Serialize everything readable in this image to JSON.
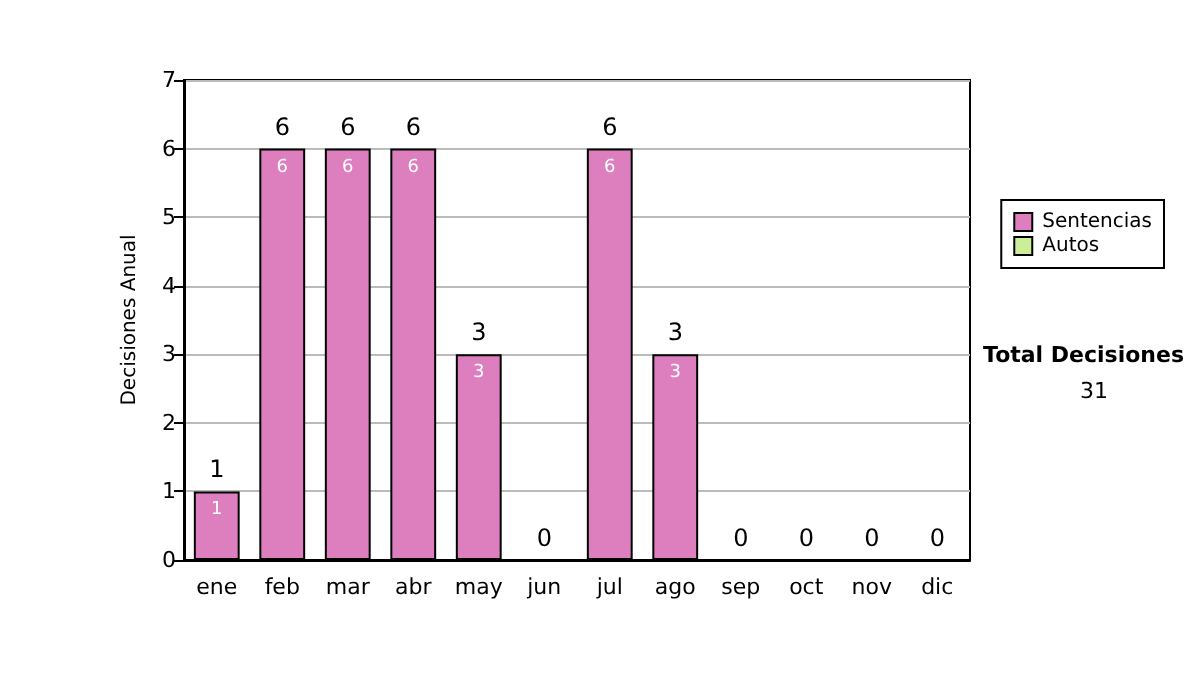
{
  "chart_data": {
    "type": "bar",
    "ylabel": "Decisiones Anual",
    "categories": [
      "ene",
      "feb",
      "mar",
      "abr",
      "may",
      "jun",
      "jul",
      "ago",
      "sep",
      "oct",
      "nov",
      "dic"
    ],
    "series": [
      {
        "name": "Sentencias",
        "color": "#dd7fbe",
        "values": [
          1,
          6,
          6,
          6,
          3,
          0,
          6,
          3,
          0,
          0,
          0,
          0
        ],
        "value_labels": [
          "1",
          "6",
          "6",
          "6",
          "3",
          null,
          "6",
          "3",
          null,
          null,
          null,
          null
        ]
      },
      {
        "name": "Autos",
        "color": "#ccee99",
        "values": [
          0,
          0,
          0,
          0,
          0,
          0,
          0,
          0,
          0,
          0,
          0,
          0
        ]
      }
    ],
    "stacked": true,
    "totals": [
      "1",
      "6",
      "6",
      "6",
      "3",
      "0",
      "6",
      "3",
      "0",
      "0",
      "0",
      "0"
    ],
    "ylim": [
      0,
      7
    ],
    "yticks": [
      0,
      1,
      2,
      3,
      4,
      5,
      6,
      7
    ],
    "grid": "y",
    "legend": "right",
    "annotations": [
      "Total Decisiones",
      "31"
    ]
  }
}
